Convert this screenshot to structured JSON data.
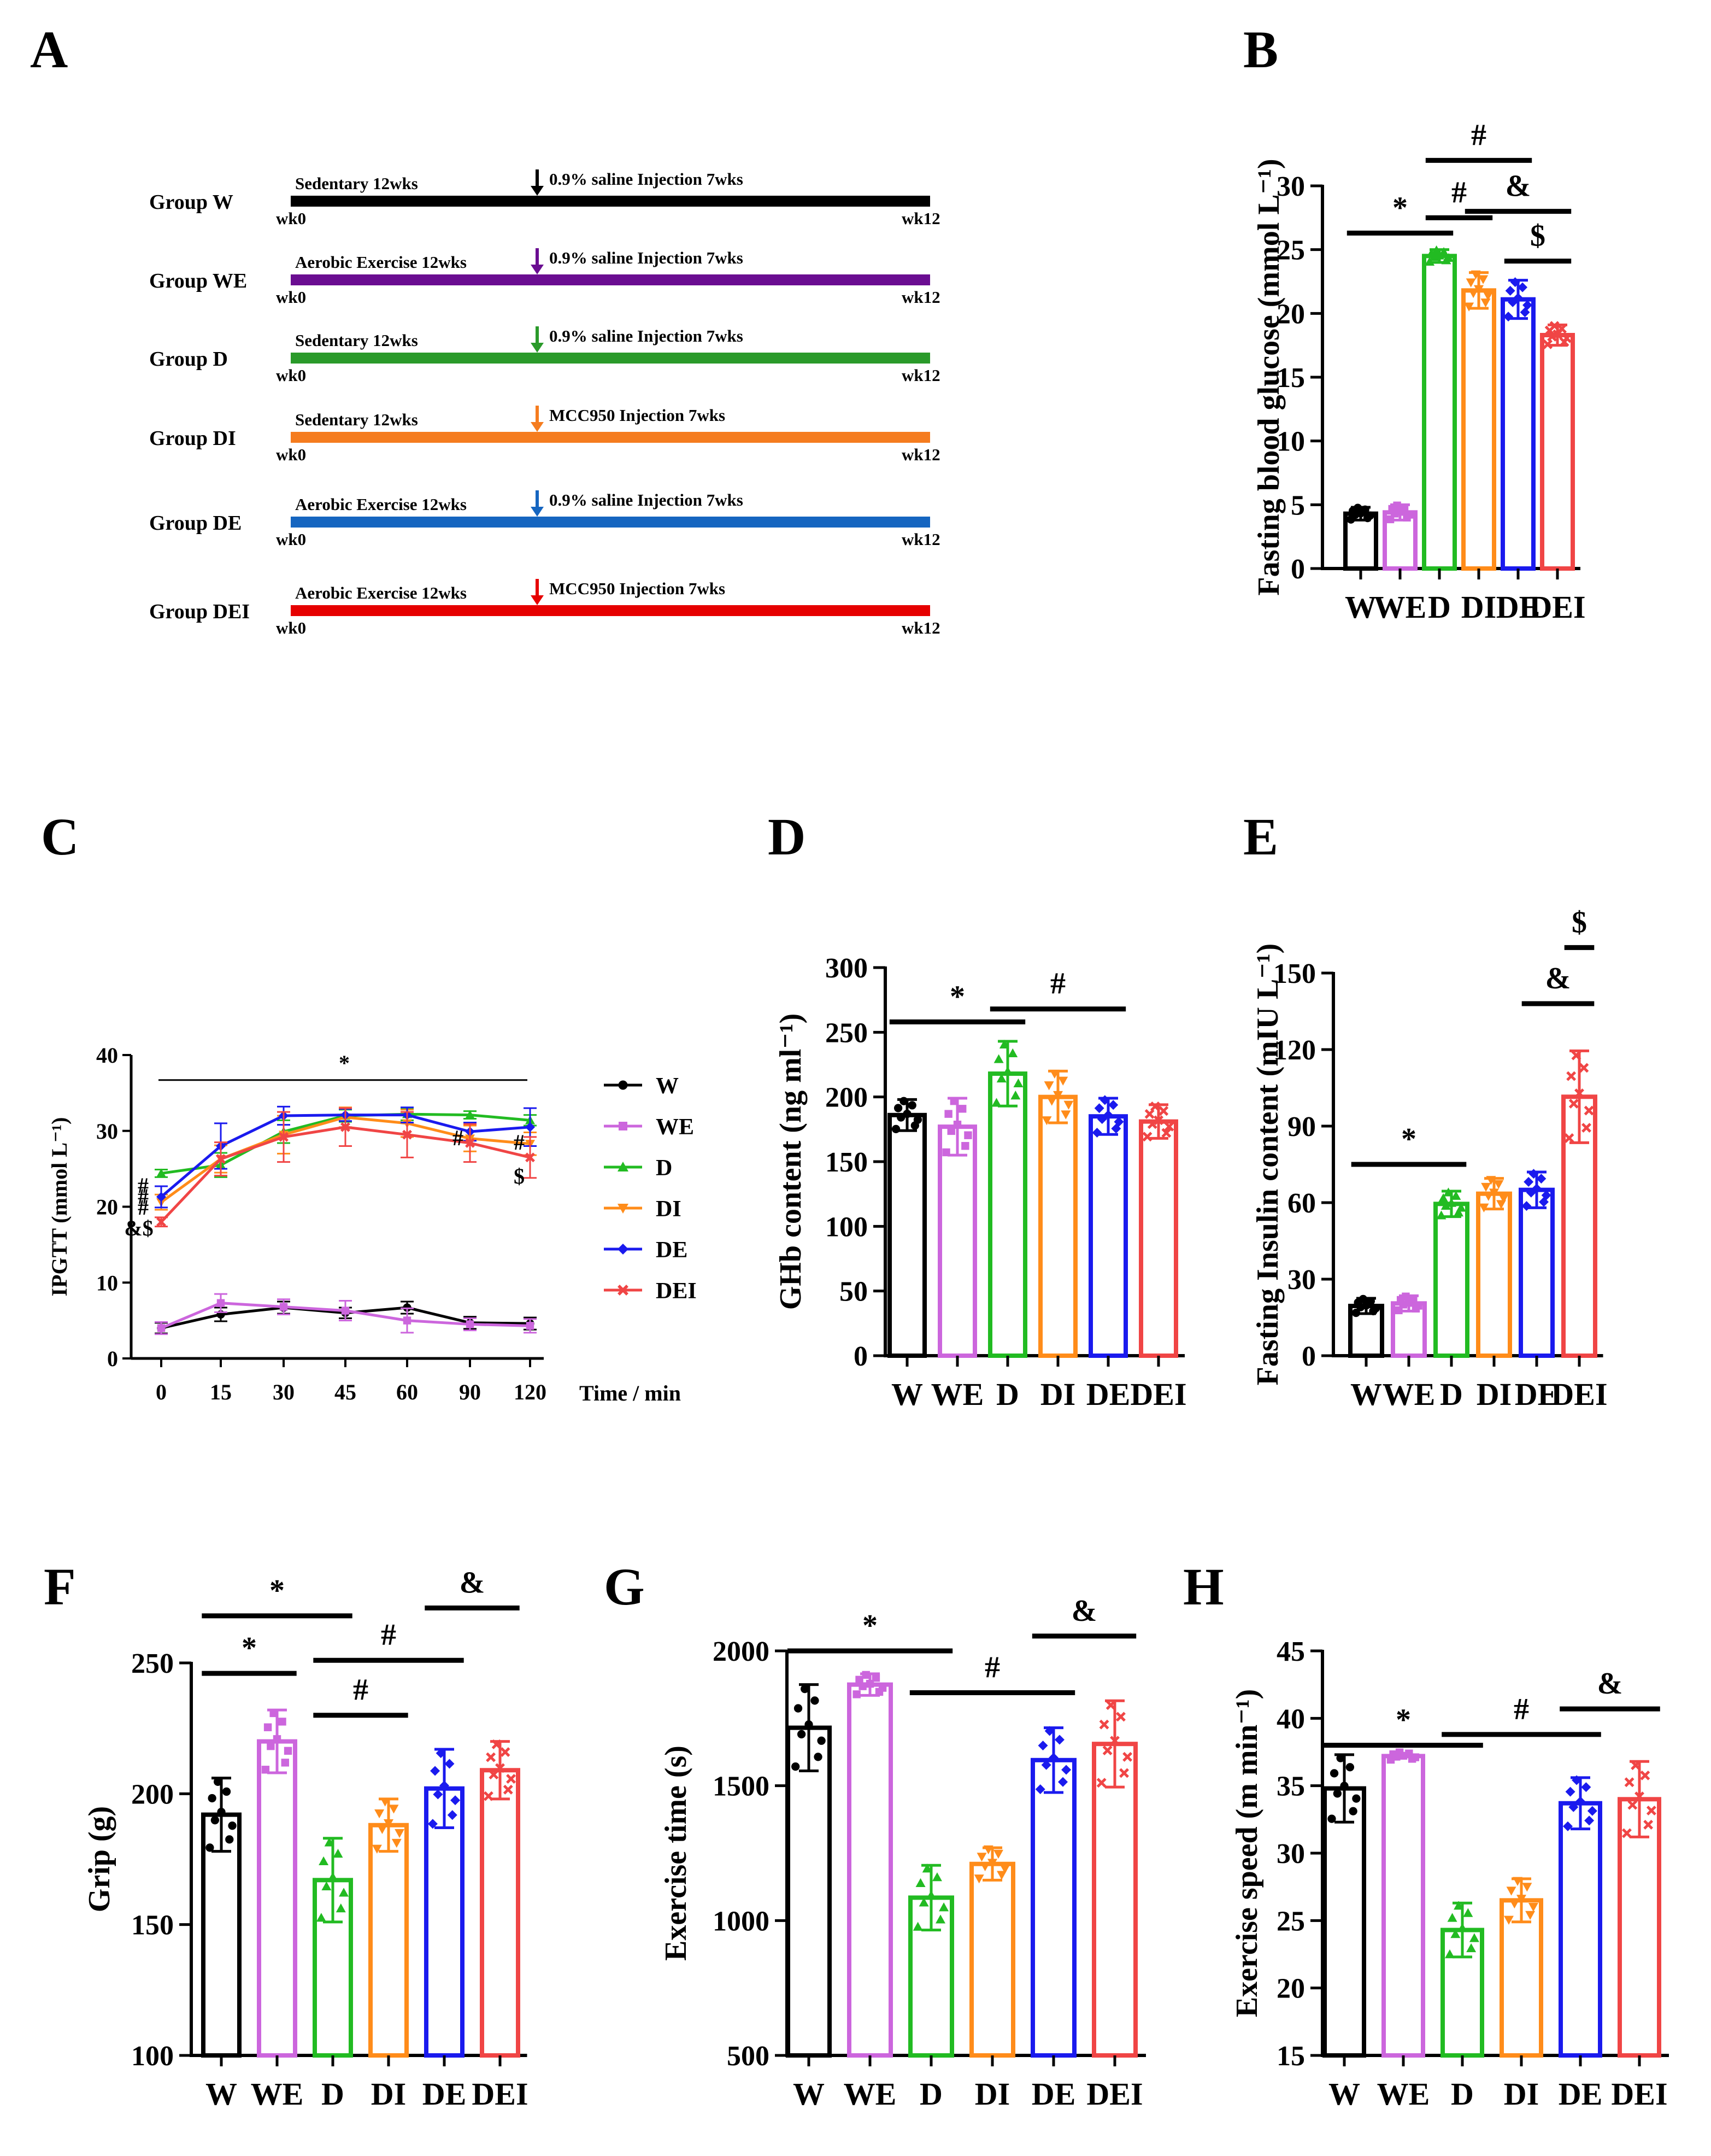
{
  "colors": {
    "W": "#000000",
    "WE": "#cc66dd",
    "D": "#22bb22",
    "DI": "#ff8c1a",
    "DE": "#1a1aee",
    "DEI": "#f04545",
    "axis": "#000000"
  },
  "group_colors": [
    "#000000",
    "#6a0d91",
    "#2a9a2a",
    "#f57c1f",
    "#1565c0",
    "#e60000"
  ],
  "panels": {
    "A": "A",
    "B": "B",
    "C": "C",
    "D": "D",
    "E": "E",
    "F": "F",
    "G": "G",
    "H": "H"
  },
  "timeline": [
    {
      "group": "Group W",
      "left": "Sedentary 12wks",
      "right": "0.9% saline Injection 7wks",
      "start": "wk0",
      "end": "wk12"
    },
    {
      "group": "Group WE",
      "left": "Aerobic Exercise 12wks",
      "right": "0.9% saline Injection 7wks",
      "start": "wk0",
      "end": "wk12"
    },
    {
      "group": "Group D",
      "left": "Sedentary 12wks",
      "right": "0.9% saline Injection 7wks",
      "start": "wk0",
      "end": "wk12"
    },
    {
      "group": "Group DI",
      "left": "Sedentary 12wks",
      "right": "MCC950 Injection 7wks",
      "start": "wk0",
      "end": "wk12"
    },
    {
      "group": "Group DE",
      "left": "Aerobic Exercise 12wks",
      "right": "0.9% saline Injection 7wks",
      "start": "wk0",
      "end": "wk12"
    },
    {
      "group": "Group DEI",
      "left": "Aerobic Exercise 12wks",
      "right": "MCC950 Injection 7wks",
      "start": "wk0",
      "end": "wk12"
    }
  ],
  "chart_data": [
    {
      "id": "B",
      "type": "bar",
      "categories": [
        "W",
        "WE",
        "D",
        "DI",
        "DE",
        "DEI"
      ],
      "values": [
        4.3,
        4.4,
        24.5,
        21.8,
        21.1,
        18.3
      ],
      "errors": [
        0.5,
        0.6,
        0.5,
        1.4,
        1.5,
        0.8
      ],
      "ylabel": "Fasting blood glucose (mmol L⁻¹)",
      "ylim": [
        0,
        30
      ],
      "yticks": [
        0,
        5,
        10,
        15,
        20,
        25,
        30
      ],
      "annotations": [
        {
          "from": 0,
          "to": 2,
          "label": "*",
          "level": 26.3
        },
        {
          "from": 2,
          "to": 3,
          "label": "#",
          "level": 27.5
        },
        {
          "from": 2,
          "to": 4,
          "label": "#",
          "level": 32.0
        },
        {
          "from": 3,
          "to": 5,
          "label": "&",
          "level": 28.0
        },
        {
          "from": 4,
          "to": 5,
          "label": "$",
          "level": 24.1
        }
      ]
    },
    {
      "id": "C",
      "type": "line",
      "x": [
        "0",
        "15",
        "30",
        "45",
        "60",
        "90",
        "120"
      ],
      "xlabel": "Time / min",
      "ylabel": "IPGTT (mmol L⁻¹)",
      "ylim": [
        0,
        40
      ],
      "yticks": [
        0,
        10,
        20,
        30,
        40
      ],
      "series": [
        {
          "name": "W",
          "values": [
            4.0,
            5.8,
            6.7,
            6.0,
            6.7,
            4.7,
            4.6
          ],
          "errors": [
            0.7,
            0.9,
            0.8,
            0.7,
            0.8,
            0.8,
            0.8
          ]
        },
        {
          "name": "WE",
          "values": [
            4.0,
            7.3,
            6.8,
            6.3,
            5.0,
            4.5,
            4.3
          ],
          "errors": [
            0.8,
            1.2,
            1.0,
            1.3,
            1.6,
            0.8,
            0.9
          ]
        },
        {
          "name": "D",
          "values": [
            24.4,
            25.5,
            29.9,
            32.0,
            32.2,
            32.1,
            31.4
          ],
          "errors": [
            0.5,
            1.6,
            1.5,
            0.8,
            0.8,
            0.5,
            0.7
          ]
        },
        {
          "name": "DI",
          "values": [
            20.6,
            26.3,
            29.5,
            31.8,
            31.0,
            29.0,
            28.3
          ],
          "errors": [
            1.0,
            1.8,
            2.5,
            1.3,
            1.8,
            1.7,
            1.5
          ]
        },
        {
          "name": "DE",
          "values": [
            21.3,
            28.0,
            32.0,
            32.1,
            32.1,
            29.9,
            30.5
          ],
          "errors": [
            1.4,
            3.0,
            1.2,
            0.8,
            1.0,
            1.2,
            2.5
          ]
        },
        {
          "name": "DEI",
          "values": [
            18.0,
            26.3,
            29.2,
            30.5,
            29.5,
            28.4,
            26.5
          ],
          "errors": [
            0.6,
            2.2,
            3.3,
            2.5,
            3.0,
            2.5,
            2.7
          ]
        }
      ],
      "annotations": [
        {
          "label": "*",
          "note": "line across 0-120 min at 36.7"
        },
        {
          "label": "#",
          "x": "0"
        },
        {
          "label": "#",
          "x": "0"
        },
        {
          "label": "#",
          "x": "0"
        },
        {
          "label": "&$",
          "x": "0"
        },
        {
          "label": "#",
          "x": "90"
        },
        {
          "label": "#",
          "x": "120"
        },
        {
          "label": "$",
          "x": "120"
        }
      ]
    },
    {
      "id": "D",
      "type": "bar",
      "categories": [
        "W",
        "WE",
        "D",
        "DI",
        "DE",
        "DEI"
      ],
      "values": [
        186,
        177,
        218,
        200,
        185,
        181
      ],
      "errors": [
        12,
        22,
        25,
        20,
        14,
        13
      ],
      "ylabel": "GHb content  (ng ml⁻¹)",
      "ylim": [
        0,
        300
      ],
      "yticks": [
        0,
        50,
        100,
        150,
        200,
        250,
        300
      ],
      "annotations": [
        {
          "from": 0,
          "to": 2,
          "label": "*",
          "level": 258
        },
        {
          "from": 2,
          "to": 4,
          "label": "#",
          "level": 268
        }
      ]
    },
    {
      "id": "E",
      "type": "bar",
      "categories": [
        "W",
        "WE",
        "D",
        "DI",
        "DE",
        "DEI"
      ],
      "values": [
        19.5,
        20.5,
        59.5,
        63.5,
        65.0,
        101.5
      ],
      "errors": [
        3,
        3,
        5,
        6,
        7,
        18
      ],
      "ylabel": "Fasting Insulin content  (mIU L⁻¹)",
      "ylim": [
        0,
        150
      ],
      "yticks": [
        0,
        30,
        60,
        90,
        120,
        150
      ],
      "annotations": [
        {
          "from": 0,
          "to": 2,
          "label": "*",
          "level": 75
        },
        {
          "from": 4,
          "to": 5,
          "label": "&",
          "level": 138
        },
        {
          "from": 5,
          "to": 5,
          "label": "$",
          "level": 160
        }
      ]
    },
    {
      "id": "F",
      "type": "bar",
      "categories": [
        "W",
        "WE",
        "D",
        "DI",
        "DE",
        "DEI"
      ],
      "values": [
        192,
        220,
        167,
        188,
        202,
        209
      ],
      "errors": [
        14,
        12,
        16,
        10,
        15,
        11
      ],
      "ylabel": "Grip (g)",
      "ylim": [
        100,
        250
      ],
      "yticks": [
        100,
        150,
        200,
        250
      ],
      "annotations": [
        {
          "from": 0,
          "to": 2,
          "label": "*",
          "level": 268
        },
        {
          "from": 0,
          "to": 1,
          "label": "*",
          "level": 246
        },
        {
          "from": 2,
          "to": 3,
          "label": "#",
          "level": 230
        },
        {
          "from": 2,
          "to": 4,
          "label": "#",
          "level": 251
        },
        {
          "from": 4,
          "to": 5,
          "label": "&",
          "level": 271
        }
      ]
    },
    {
      "id": "G",
      "type": "bar",
      "categories": [
        "W",
        "WE",
        "D",
        "DI",
        "DE",
        "DEI"
      ],
      "values": [
        1715,
        1875,
        1085,
        1210,
        1595,
        1655
      ],
      "errors": [
        160,
        40,
        120,
        60,
        120,
        160
      ],
      "ylabel": "Exercise time (s)",
      "ylim": [
        500,
        2000
      ],
      "yticks": [
        500,
        1000,
        1500,
        2000
      ],
      "annotations": [
        {
          "from": 0,
          "to": 2,
          "label": "*",
          "level": 2000
        },
        {
          "from": 2,
          "to": 4,
          "label": "#",
          "level": 1845
        },
        {
          "from": 4,
          "to": 5,
          "label": "&",
          "level": 2055
        }
      ]
    },
    {
      "id": "H",
      "type": "bar",
      "categories": [
        "W",
        "WE",
        "D",
        "DI",
        "DE",
        "DEI"
      ],
      "values": [
        34.8,
        37.2,
        24.3,
        26.5,
        33.7,
        34.0
      ],
      "errors": [
        2.5,
        0,
        2.0,
        1.6,
        1.9,
        2.8
      ],
      "ylabel": "Exercise speed (m min⁻¹)",
      "ylim": [
        15,
        45
      ],
      "yticks": [
        15,
        20,
        25,
        30,
        35,
        40,
        45
      ],
      "annotations": [
        {
          "from": 0,
          "to": 2,
          "label": "*",
          "level": 38.0
        },
        {
          "from": 2,
          "to": 4,
          "label": "#",
          "level": 38.8
        },
        {
          "from": 4,
          "to": 5,
          "label": "&",
          "level": 40.7
        }
      ]
    }
  ]
}
